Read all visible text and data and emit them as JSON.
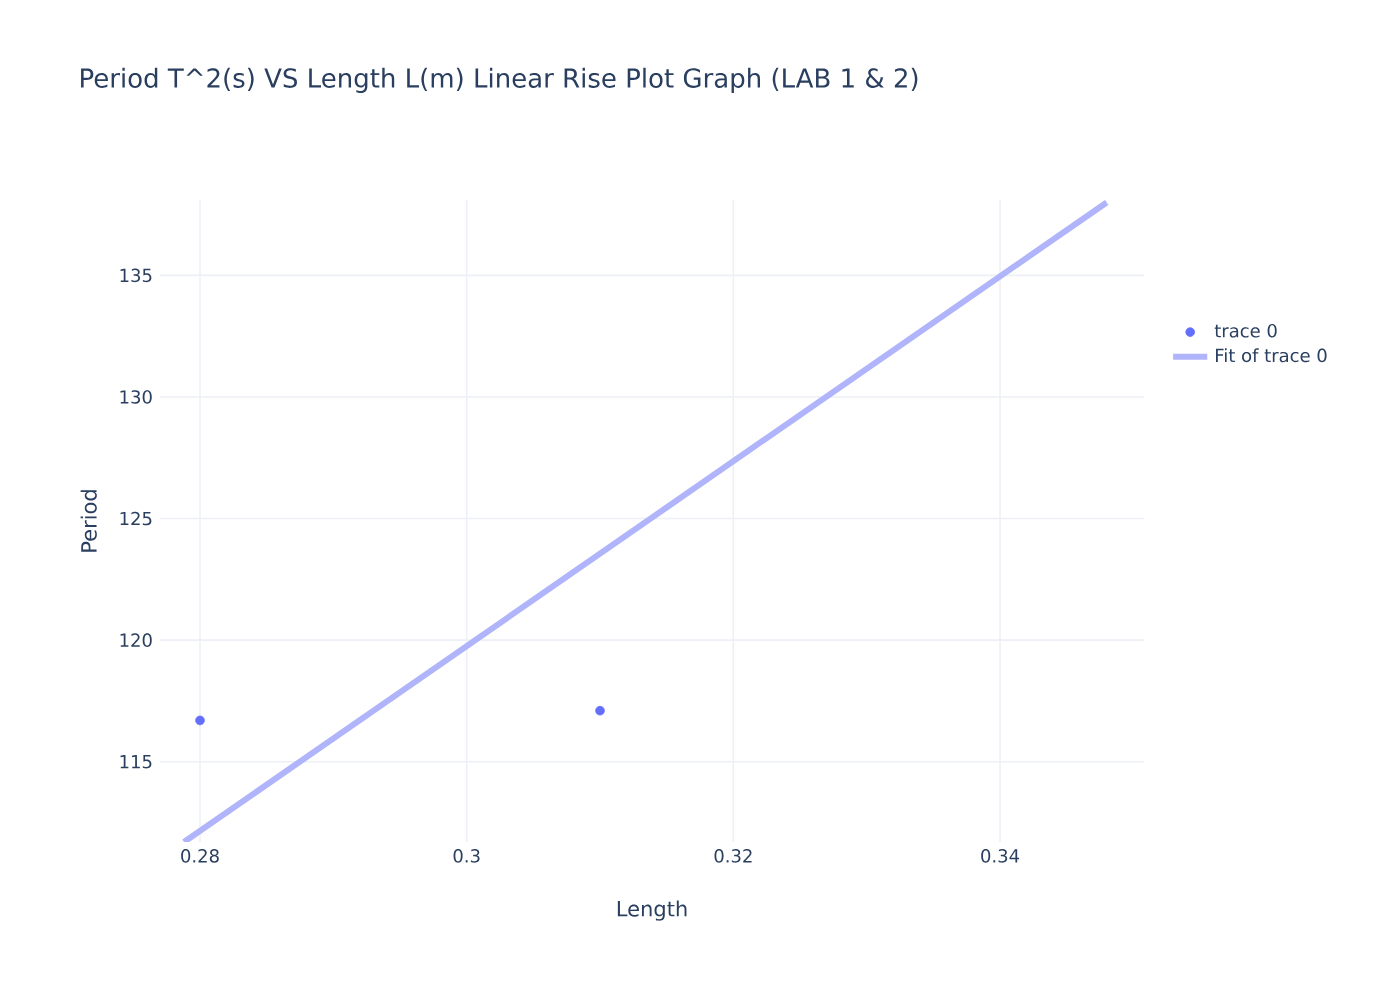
{
  "chart_data": {
    "type": "scatter",
    "title": "Period T^2(s) VS Length L(m) Linear Rise Plot Graph (LAB 1 & 2)",
    "xlabel": "Length",
    "ylabel": "Period",
    "series": [
      {
        "name": "trace 0",
        "color": "#636efa",
        "marker": "circle",
        "x": [
          0.28,
          0.31
        ],
        "values": [
          116.7,
          117.1
        ]
      },
      {
        "name": "Fit of trace 0",
        "type": "line",
        "color": "#b0b4fb",
        "marker": "none",
        "x": [
          0.2788,
          0.348
        ],
        "values": [
          111.7,
          138.0
        ]
      }
    ],
    "xlim": [
      0.277,
      0.3508
    ],
    "ylim": [
      111.7,
      138.1
    ],
    "xticks": [
      0.28,
      0.3,
      0.32,
      0.34
    ],
    "yticks": [
      115,
      120,
      125,
      130,
      135
    ],
    "grid": true,
    "legend": "top right"
  }
}
